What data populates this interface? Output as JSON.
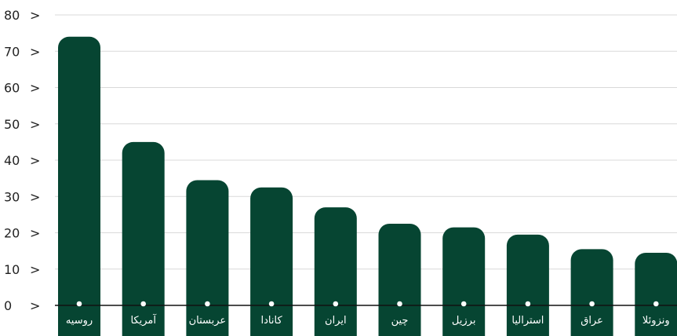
{
  "colors": {
    "bar": "#064532",
    "grid": "#d9d9d9",
    "baseline": "#111111",
    "label": "#ffffff",
    "dot": "#ffffff"
  },
  "chart_data": {
    "type": "bar",
    "categories": [
      "روسیه",
      "آمریکا",
      "عربستان",
      "کانادا",
      "ایران",
      "چین",
      "برزیل",
      "استرالیا",
      "عراق",
      "ونزوئلا"
    ],
    "values": [
      74,
      45,
      34.5,
      32.5,
      27,
      22.5,
      21.5,
      19.5,
      15.5,
      14.5
    ],
    "ylim": [
      0,
      80
    ],
    "yticks": [
      0,
      10,
      20,
      30,
      40,
      50,
      60,
      70,
      80
    ],
    "tick_suffix": ">",
    "grid": true,
    "title": "",
    "xlabel": "",
    "ylabel": ""
  }
}
